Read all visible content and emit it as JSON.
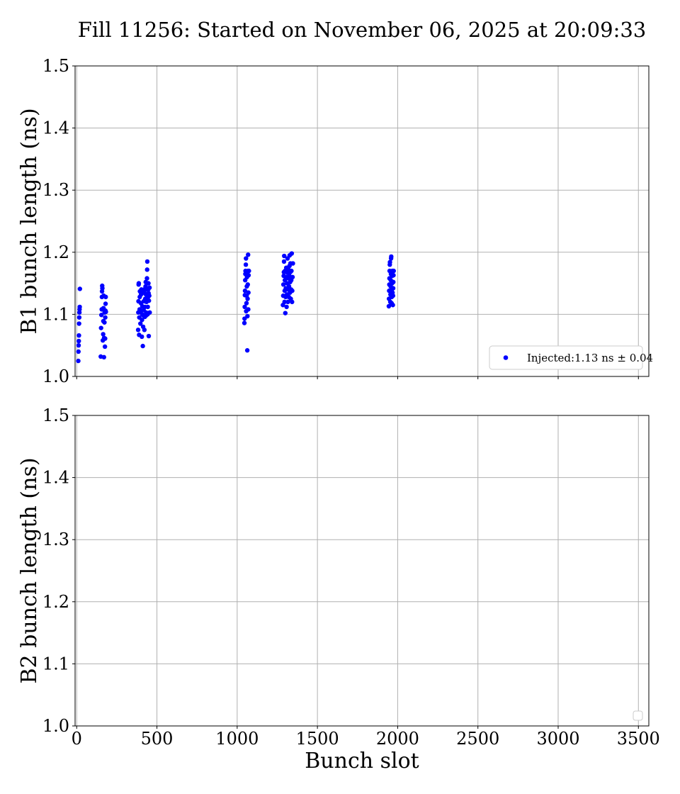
{
  "figure": {
    "title": "Fill 11256: Started on November 06, 2025 at 20:09:33",
    "x_label": "Bunch slot"
  },
  "chart_data": [
    {
      "type": "scatter",
      "ylabel": "B1 bunch length (ns)",
      "xlabel": "",
      "xlim": [
        -10,
        3565
      ],
      "ylim": [
        1.0,
        1.5
      ],
      "xticks": [
        "0",
        "500",
        "1000",
        "1500",
        "2000",
        "2500",
        "3000",
        "3500"
      ],
      "yticks": [
        "1.0",
        "1.1",
        "1.2",
        "1.3",
        "1.4",
        "1.5"
      ],
      "grid": true,
      "legend": {
        "placement": "lower-right",
        "entries": [
          "Injected:1.13 ns ± 0.04"
        ]
      },
      "colors": {
        "series": "#0000ff",
        "grid": "#b0b0b0"
      },
      "series": [
        {
          "name": "Injected:1.13 ns ± 0.04",
          "points": [
            [
              10,
              1.025
            ],
            [
              11,
              1.04
            ],
            [
              12,
              1.05
            ],
            [
              13,
              1.057
            ],
            [
              14,
              1.066
            ],
            [
              15,
              1.085
            ],
            [
              16,
              1.095
            ],
            [
              17,
              1.103
            ],
            [
              18,
              1.108
            ],
            [
              19,
              1.112
            ],
            [
              20,
              1.141
            ],
            [
              150,
              1.032
            ],
            [
              152,
              1.078
            ],
            [
              154,
              1.099
            ],
            [
              156,
              1.108
            ],
            [
              157,
              1.128
            ],
            [
              158,
              1.137
            ],
            [
              159,
              1.146
            ],
            [
              160,
              1.142
            ],
            [
              163,
              1.058
            ],
            [
              165,
              1.068
            ],
            [
              166,
              1.089
            ],
            [
              167,
              1.11
            ],
            [
              168,
              1.13
            ],
            [
              170,
              1.031
            ],
            [
              171,
              1.062
            ],
            [
              173,
              1.087
            ],
            [
              174,
              1.103
            ],
            [
              176,
              1.048
            ],
            [
              177,
              1.061
            ],
            [
              178,
              1.095
            ],
            [
              179,
              1.106
            ],
            [
              180,
              1.117
            ],
            [
              181,
              1.128
            ],
            [
              182,
              1.104
            ],
            [
              383,
              1.075
            ],
            [
              384,
              1.103
            ],
            [
              385,
              1.121
            ],
            [
              386,
              1.148
            ],
            [
              387,
              1.15
            ],
            [
              389,
              1.067
            ],
            [
              390,
              1.095
            ],
            [
              392,
              1.108
            ],
            [
              393,
              1.128
            ],
            [
              394,
              1.137
            ],
            [
              397,
              1.085
            ],
            [
              398,
              1.104
            ],
            [
              400,
              1.118
            ],
            [
              401,
              1.132
            ],
            [
              403,
              1.14
            ],
            [
              406,
              1.064
            ],
            [
              407,
              1.091
            ],
            [
              408,
              1.1
            ],
            [
              409,
              1.113
            ],
            [
              410,
              1.138
            ],
            [
              412,
              1.049
            ],
            [
              414,
              1.08
            ],
            [
              416,
              1.098
            ],
            [
              417,
              1.107
            ],
            [
              418,
              1.121
            ],
            [
              419,
              1.135
            ],
            [
              420,
              1.14
            ],
            [
              422,
              1.075
            ],
            [
              425,
              1.096
            ],
            [
              426,
              1.112
            ],
            [
              427,
              1.125
            ],
            [
              428,
              1.133
            ],
            [
              429,
              1.145
            ],
            [
              430,
              1.152
            ],
            [
              432,
              1.098
            ],
            [
              433,
              1.103
            ],
            [
              435,
              1.12
            ],
            [
              436,
              1.131
            ],
            [
              437,
              1.14
            ],
            [
              438,
              1.158
            ],
            [
              439,
              1.172
            ],
            [
              440,
              1.185
            ],
            [
              442,
              1.1
            ],
            [
              443,
              1.112
            ],
            [
              445,
              1.128
            ],
            [
              446,
              1.14
            ],
            [
              447,
              1.15
            ],
            [
              448,
              1.134
            ],
            [
              449,
              1.065
            ],
            [
              450,
              1.122
            ],
            [
              452,
              1.13
            ],
            [
              454,
              1.143
            ],
            [
              455,
              1.103
            ],
            [
              1045,
              1.086
            ],
            [
              1046,
              1.093
            ],
            [
              1047,
              1.112
            ],
            [
              1048,
              1.131
            ],
            [
              1049,
              1.138
            ],
            [
              1050,
              1.155
            ],
            [
              1051,
              1.165
            ],
            [
              1052,
              1.17
            ],
            [
              1054,
              1.18
            ],
            [
              1055,
              1.19
            ],
            [
              1056,
              1.105
            ],
            [
              1058,
              1.118
            ],
            [
              1059,
              1.13
            ],
            [
              1060,
              1.145
            ],
            [
              1061,
              1.16
            ],
            [
              1062,
              1.168
            ],
            [
              1063,
              1.042
            ],
            [
              1064,
              1.097
            ],
            [
              1065,
              1.125
            ],
            [
              1066,
              1.148
            ],
            [
              1067,
              1.17
            ],
            [
              1068,
              1.196
            ],
            [
              1069,
              1.108
            ],
            [
              1070,
              1.135
            ],
            [
              1071,
              1.163
            ],
            [
              1073,
              1.17
            ],
            [
              1285,
              1.115
            ],
            [
              1287,
              1.13
            ],
            [
              1288,
              1.148
            ],
            [
              1290,
              1.162
            ],
            [
              1291,
              1.168
            ],
            [
              1292,
              1.185
            ],
            [
              1293,
              1.194
            ],
            [
              1295,
              1.12
            ],
            [
              1296,
              1.138
            ],
            [
              1297,
              1.155
            ],
            [
              1298,
              1.17
            ],
            [
              1300,
              1.102
            ],
            [
              1302,
              1.128
            ],
            [
              1303,
              1.142
            ],
            [
              1305,
              1.16
            ],
            [
              1306,
              1.175
            ],
            [
              1308,
              1.112
            ],
            [
              1310,
              1.132
            ],
            [
              1311,
              1.15
            ],
            [
              1313,
              1.167
            ],
            [
              1314,
              1.19
            ],
            [
              1316,
              1.12
            ],
            [
              1318,
              1.14
            ],
            [
              1319,
              1.158
            ],
            [
              1320,
              1.172
            ],
            [
              1322,
              1.128
            ],
            [
              1323,
              1.145
            ],
            [
              1325,
              1.162
            ],
            [
              1326,
              1.178
            ],
            [
              1327,
              1.195
            ],
            [
              1329,
              1.135
            ],
            [
              1330,
              1.152
            ],
            [
              1331,
              1.168
            ],
            [
              1332,
              1.182
            ],
            [
              1334,
              1.125
            ],
            [
              1336,
              1.14
            ],
            [
              1337,
              1.155
            ],
            [
              1338,
              1.17
            ],
            [
              1340,
              1.198
            ],
            [
              1342,
              1.12
            ],
            [
              1343,
              1.138
            ],
            [
              1345,
              1.16
            ],
            [
              1347,
              1.182
            ],
            [
              1945,
              1.113
            ],
            [
              1946,
              1.125
            ],
            [
              1947,
              1.138
            ],
            [
              1948,
              1.148
            ],
            [
              1949,
              1.158
            ],
            [
              1950,
              1.17
            ],
            [
              1951,
              1.18
            ],
            [
              1952,
              1.184
            ],
            [
              1954,
              1.12
            ],
            [
              1955,
              1.132
            ],
            [
              1956,
              1.145
            ],
            [
              1957,
              1.155
            ],
            [
              1958,
              1.165
            ],
            [
              1959,
              1.19
            ],
            [
              1960,
              1.193
            ],
            [
              1962,
              1.118
            ],
            [
              1963,
              1.128
            ],
            [
              1964,
              1.14
            ],
            [
              1965,
              1.15
            ],
            [
              1966,
              1.162
            ],
            [
              1967,
              1.17
            ],
            [
              1968,
              1.135
            ],
            [
              1970,
              1.115
            ],
            [
              1971,
              1.13
            ],
            [
              1972,
              1.142
            ],
            [
              1973,
              1.152
            ],
            [
              1974,
              1.163
            ],
            [
              1975,
              1.17
            ]
          ]
        }
      ]
    },
    {
      "type": "scatter",
      "ylabel": "B2 bunch length (ns)",
      "xlabel": "Bunch slot",
      "xlim": [
        -10,
        3565
      ],
      "ylim": [
        1.0,
        1.5
      ],
      "xticks": [
        "0",
        "500",
        "1000",
        "1500",
        "2000",
        "2500",
        "3000",
        "3500"
      ],
      "yticks": [
        "1.0",
        "1.1",
        "1.2",
        "1.3",
        "1.4",
        "1.5"
      ],
      "grid": true,
      "legend": {
        "placement": "lower-right",
        "entries": []
      },
      "series": []
    }
  ]
}
